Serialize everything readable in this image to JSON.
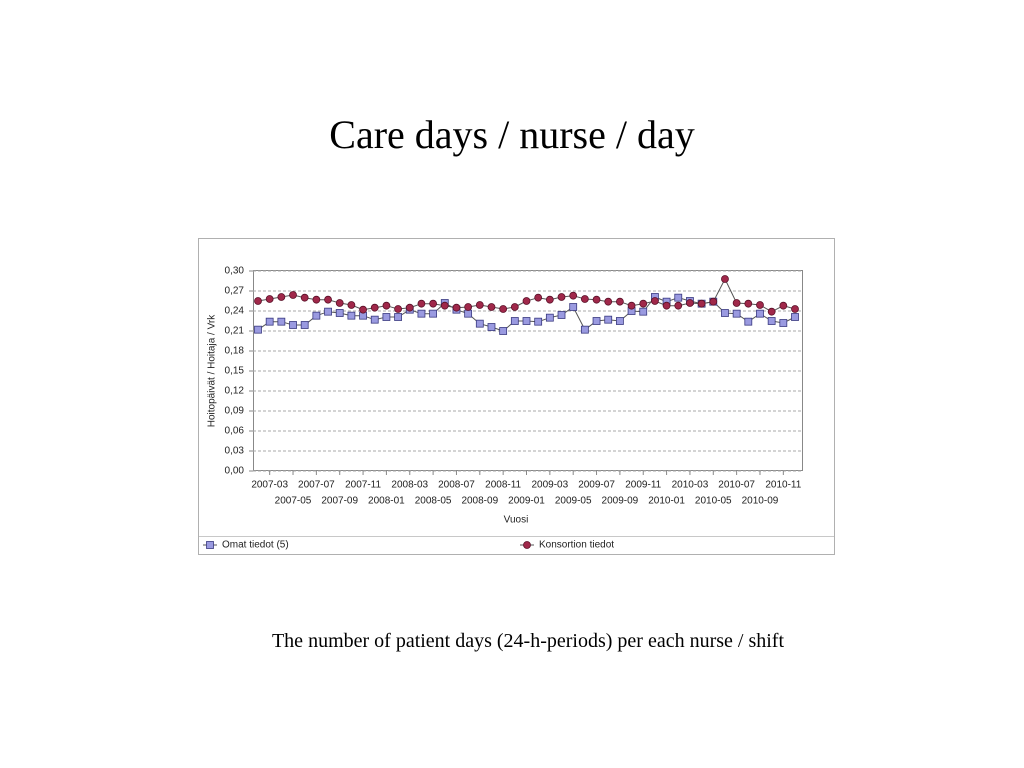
{
  "slide": {
    "title": "Care days / nurse / day",
    "caption": "The number of patient days (24-h-periods) per each nurse / shift"
  },
  "chart_data": {
    "type": "line",
    "xlabel": "Vuosi",
    "ylabel": "Hoitopäivät / Hoitaja / Vrk",
    "categories": [
      null,
      "2007-03",
      null,
      "2007-05",
      null,
      "2007-07",
      null,
      "2007-09",
      null,
      "2007-11",
      null,
      "2008-01",
      null,
      "2008-03",
      null,
      "2008-05",
      null,
      "2008-07",
      null,
      "2008-09",
      null,
      "2008-11",
      null,
      "2009-01",
      null,
      "2009-03",
      null,
      "2009-05",
      null,
      "2009-07",
      null,
      "2009-09",
      null,
      "2009-11",
      null,
      "2010-01",
      null,
      "2010-03",
      null,
      "2010-05",
      null,
      "2010-07",
      null,
      "2010-09",
      null,
      "2010-11",
      null
    ],
    "series": [
      {
        "name": "Omat tiedot (5)",
        "color": "#9a9ae0",
        "marker": "square",
        "values": [
          0.212,
          0.224,
          0.224,
          0.219,
          0.219,
          0.233,
          0.239,
          0.237,
          0.233,
          0.233,
          0.227,
          0.231,
          0.231,
          0.242,
          0.236,
          0.236,
          0.252,
          0.242,
          0.236,
          0.221,
          0.216,
          0.21,
          0.225,
          0.225,
          0.224,
          0.23,
          0.234,
          0.246,
          0.212,
          0.225,
          0.227,
          0.225,
          0.24,
          0.239,
          0.261,
          0.254,
          0.26,
          0.255,
          0.251,
          0.254,
          0.237,
          0.236,
          0.224,
          0.236,
          0.225,
          0.222,
          0.231
        ]
      },
      {
        "name": "Konsortion tiedot",
        "color": "#a0284a",
        "marker": "circle",
        "values": [
          0.255,
          0.258,
          0.261,
          0.264,
          0.26,
          0.257,
          0.257,
          0.252,
          0.249,
          0.242,
          0.245,
          0.248,
          0.243,
          0.245,
          0.251,
          0.251,
          0.248,
          0.245,
          0.246,
          0.249,
          0.246,
          0.243,
          0.246,
          0.255,
          0.26,
          0.257,
          0.261,
          0.263,
          0.258,
          0.257,
          0.254,
          0.254,
          0.248,
          0.251,
          0.255,
          0.248,
          0.248,
          0.252,
          0.251,
          0.254,
          0.288,
          0.252,
          0.251,
          0.249,
          0.239,
          0.248,
          0.243
        ]
      }
    ],
    "ylim": [
      0,
      0.3
    ],
    "yticks": [
      {
        "value": 0,
        "label": "0,00"
      },
      {
        "value": 0.03,
        "label": "0,03"
      },
      {
        "value": 0.06,
        "label": "0,06"
      },
      {
        "value": 0.09,
        "label": "0,09"
      },
      {
        "value": 0.12,
        "label": "0,12"
      },
      {
        "value": 0.15,
        "label": "0,15"
      },
      {
        "value": 0.18,
        "label": "0,18"
      },
      {
        "value": 0.21,
        "label": "0,21"
      },
      {
        "value": 0.24,
        "label": "0,24"
      },
      {
        "value": 0.27,
        "label": "0,27"
      },
      {
        "value": 0.3,
        "label": "0,30"
      }
    ],
    "grid": true,
    "legend": "bottom"
  }
}
